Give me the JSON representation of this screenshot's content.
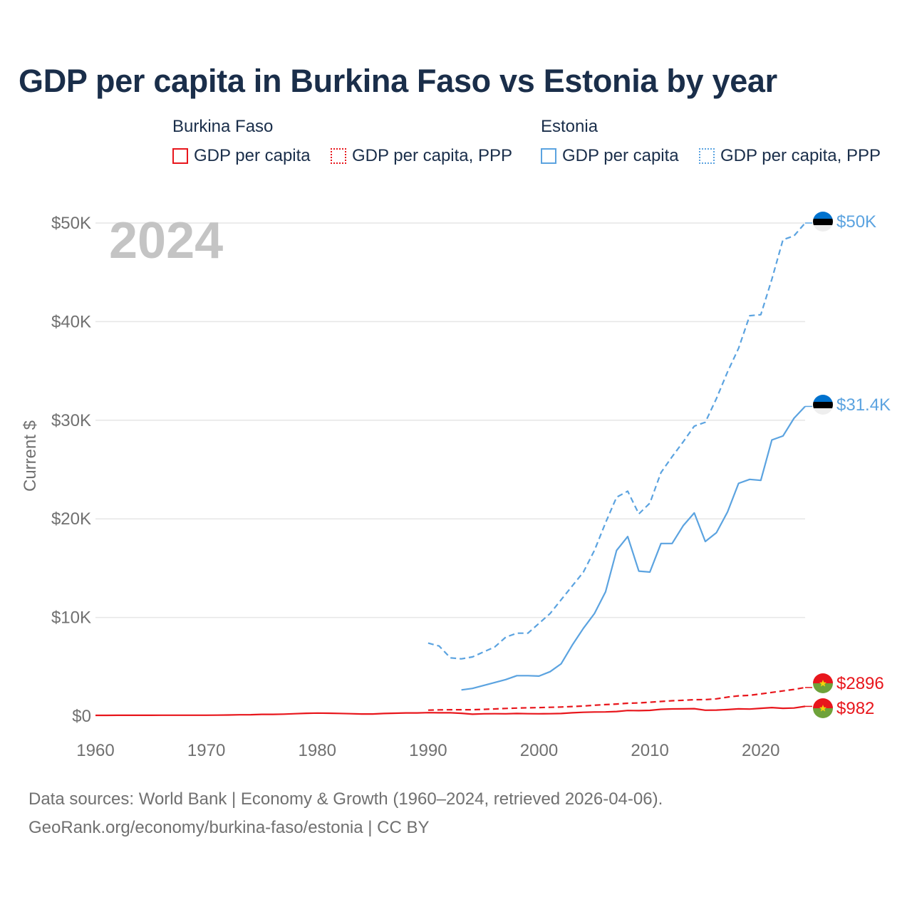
{
  "title": "GDP per capita in Burkina Faso vs Estonia by year",
  "legend": {
    "groups": [
      {
        "name": "Burkina Faso",
        "items": [
          "GDP per capita",
          "GDP per capita, PPP"
        ]
      },
      {
        "name": "Estonia",
        "items": [
          "GDP per capita",
          "GDP per capita, PPP"
        ]
      }
    ]
  },
  "year_label": "2024",
  "footer": {
    "line1": "Data sources: World Bank | Economy & Growth (1960–2024, retrieved 2026-04-06).",
    "line2": "GeoRank.org/economy/burkina-faso/estonia | CC BY"
  },
  "colors": {
    "burkina": "#e8161c",
    "estonia": "#5ba3e0",
    "title": "#1a2e4a",
    "axis": "#707070",
    "grid": "#e6e6e6",
    "year": "#c4c4c4"
  },
  "chart_data": {
    "type": "line",
    "title": "GDP per capita in Burkina Faso vs Estonia by year",
    "xlabel": "",
    "ylabel": "Current $",
    "xlim": [
      1960,
      2024
    ],
    "ylim": [
      0,
      50000
    ],
    "x_ticks": [
      1960,
      1970,
      1980,
      1990,
      2000,
      2010,
      2020
    ],
    "x_tick_labels": [
      "1960",
      "1970",
      "1980",
      "1990",
      "2000",
      "2010",
      "2020"
    ],
    "y_ticks": [
      0,
      10000,
      20000,
      30000,
      40000,
      50000
    ],
    "y_tick_labels": [
      "$0",
      "$10K",
      "$20K",
      "$30K",
      "$40K",
      "$50K"
    ],
    "grid": true,
    "series": [
      {
        "name": "Burkina Faso GDP per capita",
        "country": "Burkina Faso",
        "measure": "GDP per capita",
        "color": "#e8161c",
        "dash": "solid",
        "end_label": "$982",
        "x": [
          1960,
          1961,
          1962,
          1963,
          1964,
          1965,
          1966,
          1967,
          1968,
          1969,
          1970,
          1971,
          1972,
          1973,
          1974,
          1975,
          1976,
          1977,
          1978,
          1979,
          1980,
          1981,
          1982,
          1983,
          1984,
          1985,
          1986,
          1987,
          1988,
          1989,
          1990,
          1991,
          1992,
          1993,
          1994,
          1995,
          1996,
          1997,
          1998,
          1999,
          2000,
          2001,
          2002,
          2003,
          2004,
          2005,
          2006,
          2007,
          2008,
          2009,
          2010,
          2011,
          2012,
          2013,
          2014,
          2015,
          2016,
          2017,
          2018,
          2019,
          2020,
          2021,
          2022,
          2023,
          2024
        ],
        "values": [
          70,
          72,
          76,
          77,
          79,
          82,
          84,
          85,
          86,
          90,
          90,
          93,
          108,
          128,
          137,
          172,
          174,
          197,
          240,
          280,
          300,
          290,
          270,
          240,
          210,
          210,
          260,
          290,
          320,
          320,
          350,
          330,
          330,
          280,
          190,
          230,
          240,
          230,
          260,
          240,
          230,
          240,
          260,
          330,
          380,
          410,
          420,
          460,
          560,
          550,
          580,
          690,
          720,
          730,
          750,
          590,
          610,
          660,
          730,
          710,
          790,
          860,
          790,
          820,
          982
        ]
      },
      {
        "name": "Burkina Faso GDP per capita, PPP",
        "country": "Burkina Faso",
        "measure": "GDP per capita, PPP",
        "color": "#e8161c",
        "dash": "dashed",
        "end_label": "$2896",
        "x": [
          1990,
          1991,
          1992,
          1993,
          1994,
          1995,
          1996,
          1997,
          1998,
          1999,
          2000,
          2001,
          2002,
          2003,
          2004,
          2005,
          2006,
          2007,
          2008,
          2009,
          2010,
          2011,
          2012,
          2013,
          2014,
          2015,
          2016,
          2017,
          2018,
          2019,
          2020,
          2021,
          2022,
          2023,
          2024
        ],
        "values": [
          600,
          630,
          640,
          640,
          640,
          680,
          720,
          770,
          810,
          840,
          860,
          890,
          920,
          970,
          1020,
          1100,
          1160,
          1220,
          1300,
          1330,
          1400,
          1480,
          1550,
          1600,
          1660,
          1670,
          1750,
          1920,
          2050,
          2100,
          2250,
          2400,
          2550,
          2700,
          2896
        ]
      },
      {
        "name": "Estonia GDP per capita",
        "country": "Estonia",
        "measure": "GDP per capita",
        "color": "#5ba3e0",
        "dash": "solid",
        "end_label": "$31.4K",
        "x": [
          1993,
          1994,
          1995,
          1996,
          1997,
          1998,
          1999,
          2000,
          2001,
          2002,
          2003,
          2004,
          2005,
          2006,
          2007,
          2008,
          2009,
          2010,
          2011,
          2012,
          2013,
          2014,
          2015,
          2016,
          2017,
          2018,
          2019,
          2020,
          2021,
          2022,
          2023,
          2024
        ],
        "values": [
          2650,
          2800,
          3100,
          3400,
          3700,
          4100,
          4100,
          4050,
          4500,
          5300,
          7200,
          8900,
          10400,
          12600,
          16800,
          18200,
          14700,
          14600,
          17500,
          17500,
          19300,
          20600,
          17700,
          18600,
          20700,
          23600,
          24000,
          23900,
          28000,
          28400,
          30200,
          31400
        ]
      },
      {
        "name": "Estonia GDP per capita, PPP",
        "country": "Estonia",
        "measure": "GDP per capita, PPP",
        "color": "#5ba3e0",
        "dash": "dashed",
        "end_label": "$50K",
        "x": [
          1990,
          1991,
          1992,
          1993,
          1994,
          1995,
          1996,
          1997,
          1998,
          1999,
          2000,
          2001,
          2002,
          2003,
          2004,
          2005,
          2006,
          2007,
          2008,
          2009,
          2010,
          2011,
          2012,
          2013,
          2014,
          2015,
          2016,
          2017,
          2018,
          2019,
          2020,
          2021,
          2022,
          2023,
          2024
        ],
        "values": [
          7400,
          7100,
          5900,
          5800,
          6000,
          6500,
          7000,
          8000,
          8400,
          8400,
          9400,
          10400,
          11800,
          13200,
          14600,
          16800,
          19600,
          22200,
          22800,
          20500,
          21600,
          24700,
          26300,
          27800,
          29400,
          29800,
          32200,
          34900,
          37300,
          40600,
          40700,
          44300,
          48300,
          48700,
          50000
        ]
      }
    ]
  }
}
